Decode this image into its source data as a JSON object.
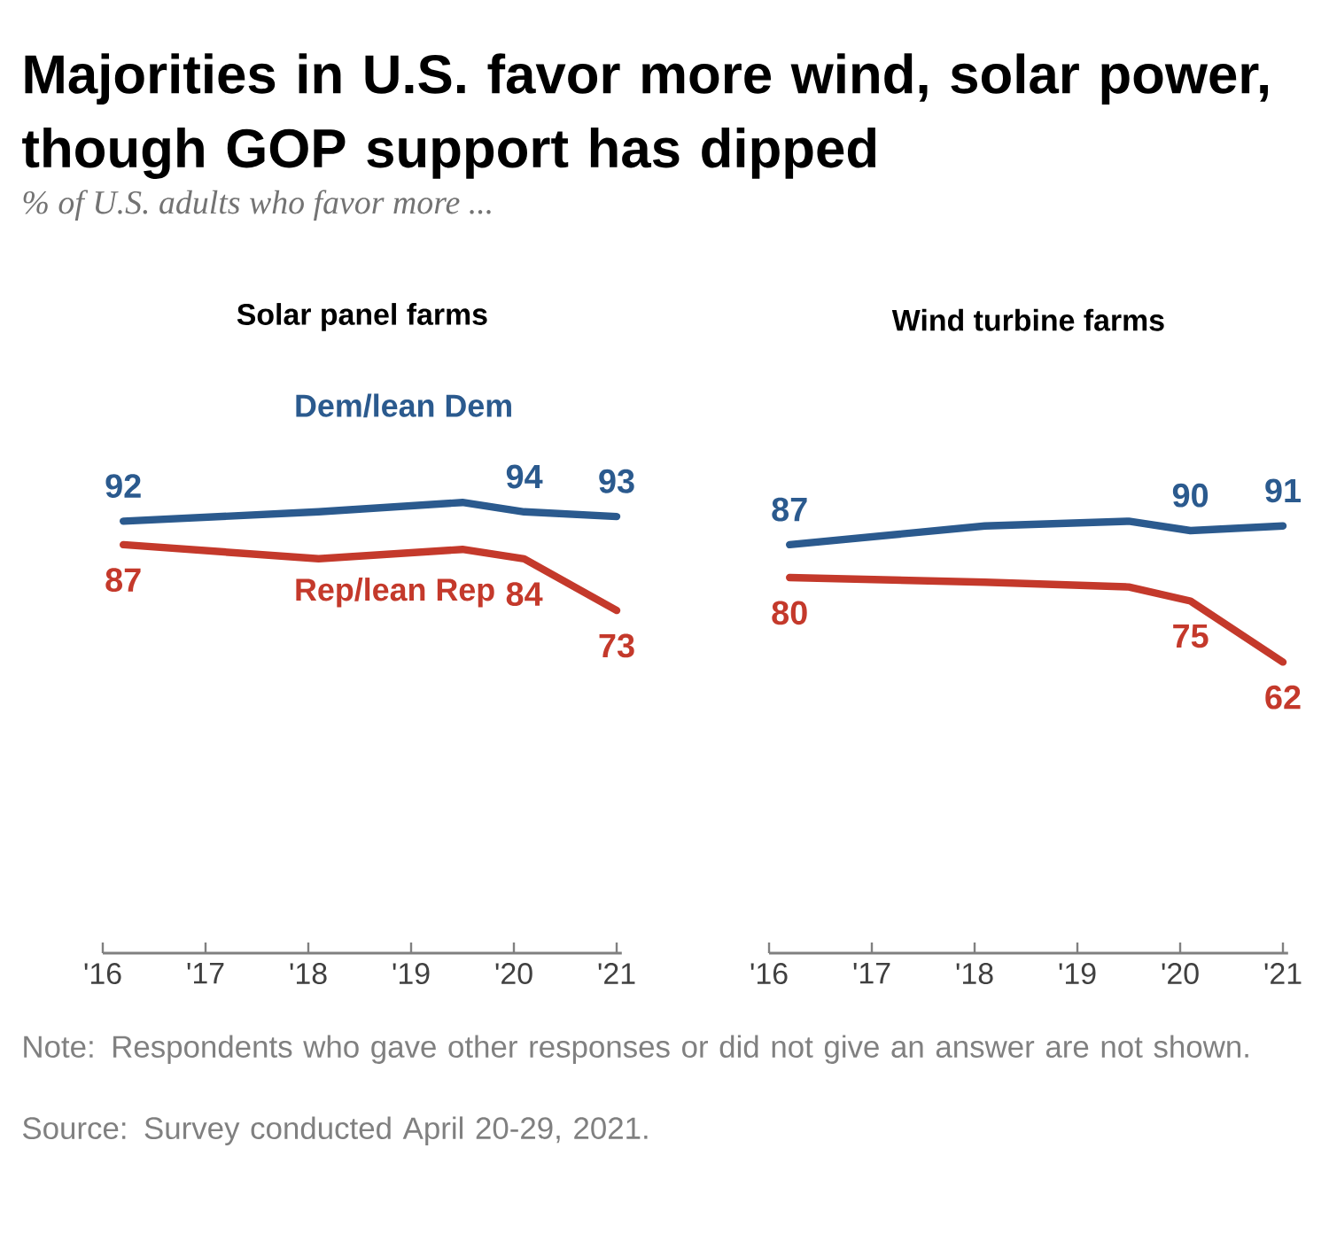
{
  "chart_data": [
    {
      "type": "other",
      "title": "Majorities in U.S. favor more wind, solar power, though GOP support has dipped",
      "subtitle": "% of U.S. adults who favor more ...",
      "annotations": [
        "Note: Respondents who gave other responses or did not give an answer are not shown.",
        "Source: Survey conducted April 20-29, 2021."
      ]
    },
    {
      "type": "line",
      "title": "Solar panel farms",
      "tick_labels": "x",
      "xlim": [
        2016,
        2021.05
      ],
      "xticks": [
        {
          "value": 2016,
          "label": "'16"
        },
        {
          "value": 2017,
          "label": "'17"
        },
        {
          "value": 2018,
          "label": "'18"
        },
        {
          "value": 2019,
          "label": "'19"
        },
        {
          "value": 2020,
          "label": "'20"
        },
        {
          "value": 2021,
          "label": "'21"
        }
      ],
      "x": [
        2016.2,
        2018.1,
        2019.5,
        2020.1,
        2021.0
      ],
      "series": [
        {
          "name": "Dem/lean Dem",
          "color": "#2b5a8e",
          "values": [
            92,
            94,
            96,
            94,
            93
          ],
          "value_labels": [
            "92",
            null,
            null,
            "94",
            "93"
          ]
        },
        {
          "name": "Rep/lean Rep",
          "color": "#c4392b",
          "values": [
            87,
            84,
            86,
            84,
            73
          ],
          "value_labels": [
            "87",
            null,
            null,
            "84",
            "73"
          ]
        }
      ]
    },
    {
      "type": "line",
      "title": "Wind turbine farms",
      "tick_labels": "x",
      "xlim": [
        2016,
        2021.05
      ],
      "xticks": [
        {
          "value": 2016,
          "label": "'16"
        },
        {
          "value": 2017,
          "label": "'17"
        },
        {
          "value": 2018,
          "label": "'18"
        },
        {
          "value": 2019,
          "label": "'19"
        },
        {
          "value": 2020,
          "label": "'20"
        },
        {
          "value": 2021,
          "label": "'21"
        }
      ],
      "x": [
        2016.2,
        2018.1,
        2019.5,
        2020.1,
        2021.0
      ],
      "series": [
        {
          "color": "#2b5a8e",
          "values": [
            87,
            91,
            92,
            90,
            91
          ],
          "value_labels": [
            "87",
            null,
            null,
            "90",
            "91"
          ]
        },
        {
          "color": "#c4392b",
          "values": [
            80,
            79,
            78,
            75,
            62
          ],
          "value_labels": [
            "80",
            null,
            null,
            "75",
            "62"
          ]
        }
      ]
    }
  ]
}
